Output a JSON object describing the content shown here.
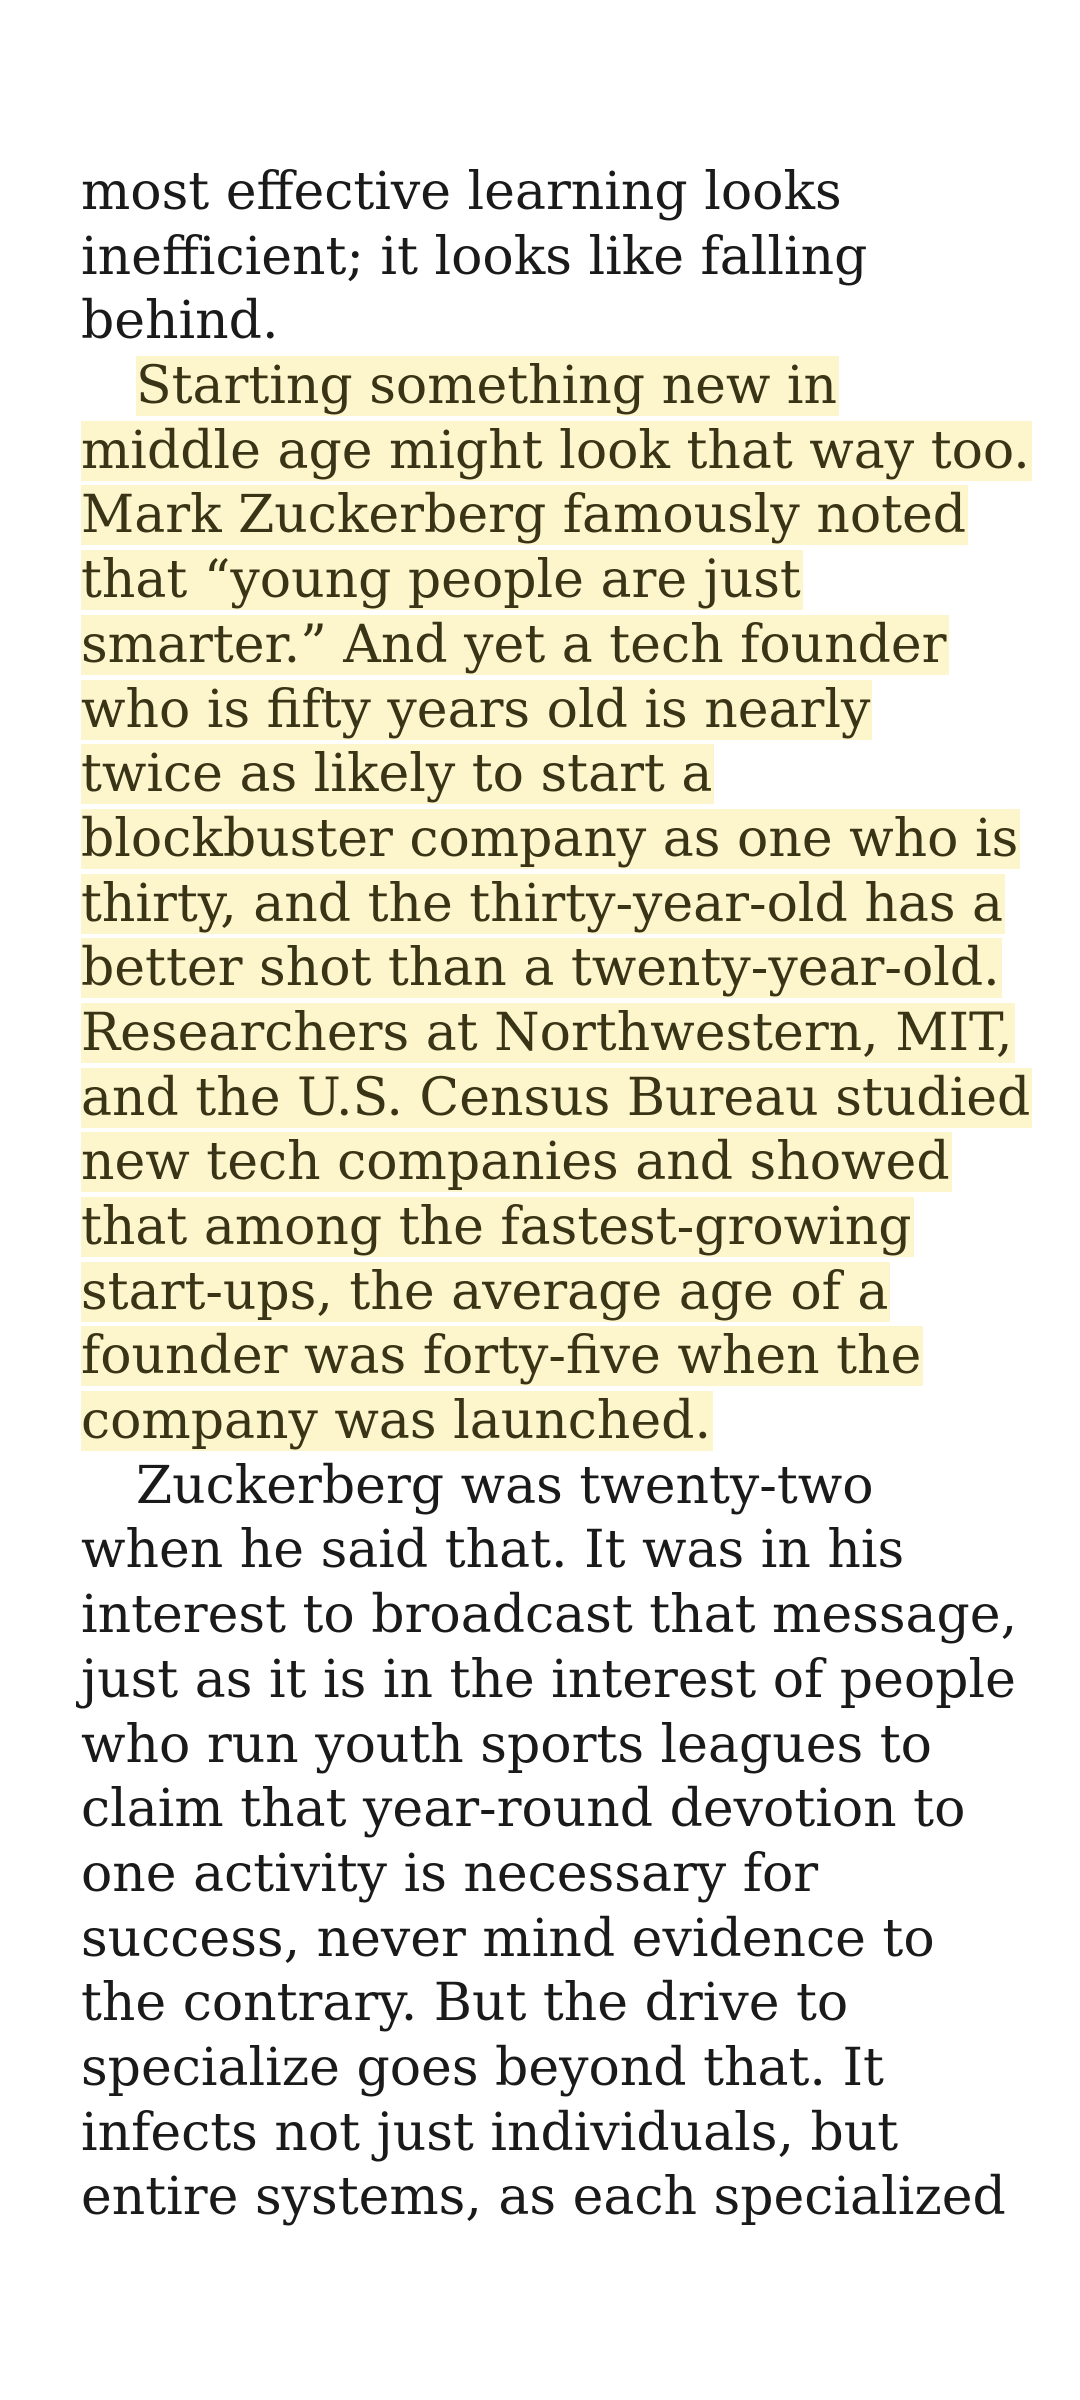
{
  "book": {
    "paragraph_1_tail": [
      "most effective learning looks",
      "inefficient; it looks like falling",
      "behind."
    ],
    "paragraph_2_highlighted": [
      "Starting something new in",
      "middle age might look that way too.",
      "Mark Zuckerberg famously noted",
      "that “young people are just",
      "smarter.” And yet a tech founder",
      "who is fifty years old is nearly",
      "twice as likely to start a",
      "blockbuster company as one who is",
      "thirty, and the thirty-year-old has a",
      "better shot than a twenty-year-old.",
      "Researchers at Northwestern, MIT,",
      "and the U.S. Census Bureau studied",
      "new tech companies and showed",
      "that among the fastest-growing",
      "start-ups, the average age of a",
      "founder was forty-five when the",
      "company was launched."
    ],
    "paragraph_3": [
      "Zuckerberg was twenty-two",
      "when he said that. It was in his",
      "interest to broadcast that message,",
      "just as it is in the interest of people",
      "who run youth sports leagues to",
      "claim that year-round devotion to",
      "one activity is necessary for",
      "success, never mind evidence to",
      "the contrary. But the drive to",
      "specialize goes beyond that. It",
      "infects not just individuals, but",
      "entire systems, as each specialized"
    ]
  },
  "colors": {
    "highlight": "#fdf5cc",
    "text": "#1a1a1a",
    "highlighted_text": "#3a3416",
    "background": "#ffffff"
  }
}
